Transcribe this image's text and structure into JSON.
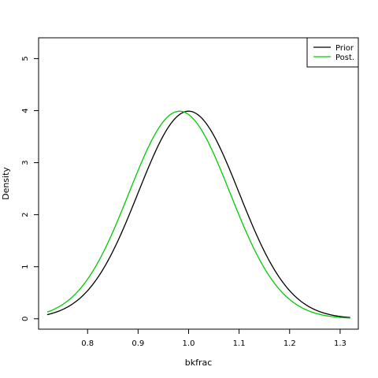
{
  "chart_data": {
    "type": "line",
    "title": "",
    "xlabel": "bkfrac",
    "ylabel": "Density",
    "xlim": [
      0.703,
      1.336
    ],
    "ylim": [
      -0.2,
      5.4
    ],
    "x_ticks": [
      0.8,
      0.9,
      1.0,
      1.1,
      1.2,
      1.3
    ],
    "x_tick_labels": [
      "0.8",
      "0.9",
      "1.0",
      "1.1",
      "1.2",
      "1.3"
    ],
    "y_ticks": [
      0,
      1,
      2,
      3,
      4,
      5
    ],
    "y_tick_labels": [
      "0",
      "1",
      "2",
      "3",
      "4",
      "5"
    ],
    "grid": false,
    "legend_position": "top-right",
    "series": [
      {
        "name": "Prior",
        "color": "#000000",
        "distribution": "normal",
        "mean": 1.0,
        "sd": 0.1,
        "x_range": [
          0.72,
          1.32
        ]
      },
      {
        "name": "Post.",
        "color": "#00cc00",
        "distribution": "normal",
        "mean": 0.982,
        "sd": 0.1,
        "x_range": [
          0.72,
          1.32
        ]
      }
    ]
  }
}
